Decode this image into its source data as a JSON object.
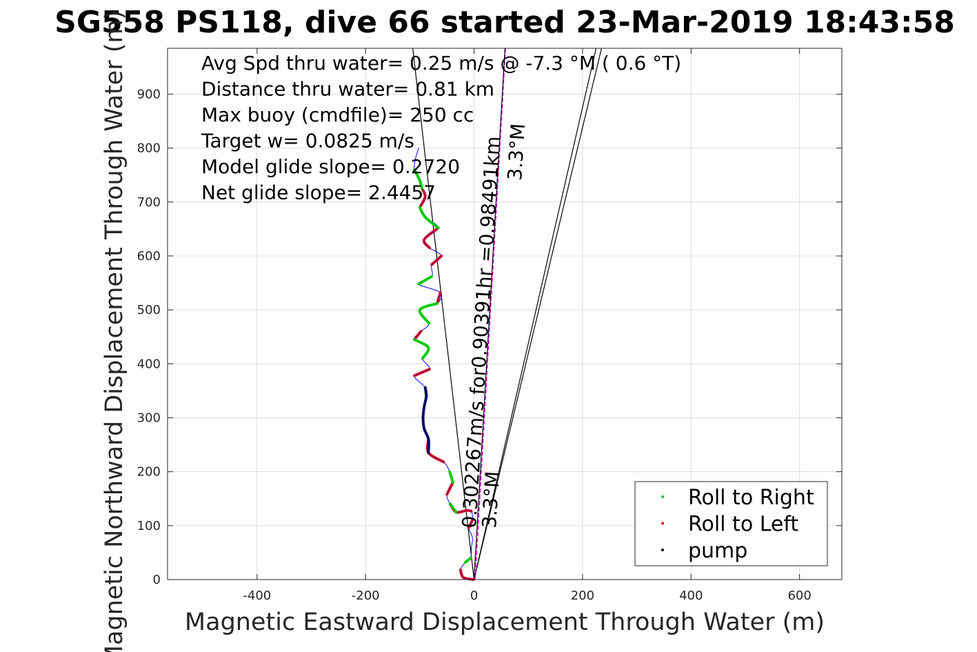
{
  "chart_data": {
    "type": "line",
    "title": "SG558 PS118, dive 66 started 23-Mar-2019 18:43:58",
    "xlabel": "Magnetic Eastward Displacement Through Water (m)",
    "ylabel": "Magnetic Northward Displacement Through Water (m)",
    "xlim": [
      -565,
      678
    ],
    "ylim": [
      0,
      985
    ],
    "xticks": [
      -400,
      -200,
      0,
      200,
      400,
      600
    ],
    "yticks": [
      0,
      100,
      200,
      300,
      400,
      500,
      600,
      700,
      800,
      900
    ],
    "grid": true,
    "legend_placement": "bottom-right",
    "annotations": [
      "Avg Spd thru water=  0.25 m/s @  -7.3 °M (  0.6 °T)",
      "Distance thru water=  0.81 km",
      "Max buoy (cmdfile)= 250 cc",
      "Target w= 0.0825 m/s",
      "Model glide slope= 0.2720",
      "Net glide slope= 2.4457"
    ],
    "current_labels": {
      "main": "0.302267m/s for0.90391hr =0.98491km",
      "heading_lower": "3.3°M",
      "heading_upper": "3.3°M"
    },
    "series": [
      {
        "name": "Roll to Right",
        "color": "#00cc00"
      },
      {
        "name": "Roll to Left",
        "color": "#ff0000"
      },
      {
        "name": "pump",
        "color": "#000000"
      }
    ],
    "track": {
      "color": "#0000ff",
      "points": [
        [
          -1,
          0
        ],
        [
          -20,
          4
        ],
        [
          -25,
          18
        ],
        [
          -16,
          32
        ],
        [
          -6,
          40
        ],
        [
          -5,
          58
        ],
        [
          -3,
          78
        ],
        [
          -10,
          96
        ],
        [
          -3,
          110
        ],
        [
          -5,
          127
        ],
        [
          -14,
          128
        ],
        [
          -33,
          125
        ],
        [
          -44,
          140
        ],
        [
          -50,
          158
        ],
        [
          -39,
          180
        ],
        [
          -45,
          200
        ],
        [
          -56,
          218
        ],
        [
          -84,
          235
        ],
        [
          -84,
          260
        ],
        [
          -92,
          280
        ],
        [
          -94,
          300
        ],
        [
          -92,
          320
        ],
        [
          -88,
          340
        ],
        [
          -90,
          356
        ],
        [
          -110,
          378
        ],
        [
          -82,
          390
        ],
        [
          -95,
          410
        ],
        [
          -84,
          430
        ],
        [
          -110,
          445
        ],
        [
          -98,
          460
        ],
        [
          -83,
          475
        ],
        [
          -100,
          500
        ],
        [
          -68,
          512
        ],
        [
          -62,
          532
        ],
        [
          -102,
          548
        ],
        [
          -78,
          562
        ],
        [
          -78,
          584
        ],
        [
          -60,
          600
        ],
        [
          -82,
          615
        ],
        [
          -92,
          630
        ],
        [
          -66,
          652
        ],
        [
          -90,
          672
        ],
        [
          -100,
          690
        ],
        [
          -90,
          710
        ],
        [
          -96,
          725
        ],
        [
          -100,
          740
        ],
        [
          -110,
          760
        ],
        [
          -108,
          780
        ],
        [
          -102,
          800
        ]
      ],
      "right_segments": [
        [
          3,
          4
        ],
        [
          11,
          12
        ],
        [
          14,
          15
        ],
        [
          22,
          23
        ],
        [
          26,
          28
        ],
        [
          30,
          32
        ],
        [
          34,
          35
        ],
        [
          40,
          42
        ],
        [
          44,
          46
        ]
      ],
      "left_segments": [
        [
          0,
          2
        ],
        [
          7,
          8
        ],
        [
          9,
          12
        ],
        [
          13,
          14
        ],
        [
          16,
          18
        ],
        [
          24,
          25
        ],
        [
          28,
          29
        ],
        [
          32,
          33
        ],
        [
          36,
          37
        ],
        [
          38,
          40
        ],
        [
          42,
          44
        ]
      ],
      "pump_segments": [
        [
          17,
          23
        ]
      ]
    },
    "lines": {
      "descent_start": [
        -113,
        985
      ],
      "net_line": [
        [
          0,
          0
        ],
        [
          -113,
          985
        ]
      ],
      "current_line": [
        [
          0,
          0
        ],
        [
          57,
          985
        ]
      ],
      "current_dashed": [
        [
          2,
          0
        ],
        [
          58,
          985
        ]
      ],
      "envelope_left": [
        [
          0,
          0
        ],
        [
          225,
          985
        ]
      ],
      "envelope_right": [
        [
          0,
          0
        ],
        [
          235,
          985
        ]
      ]
    }
  }
}
